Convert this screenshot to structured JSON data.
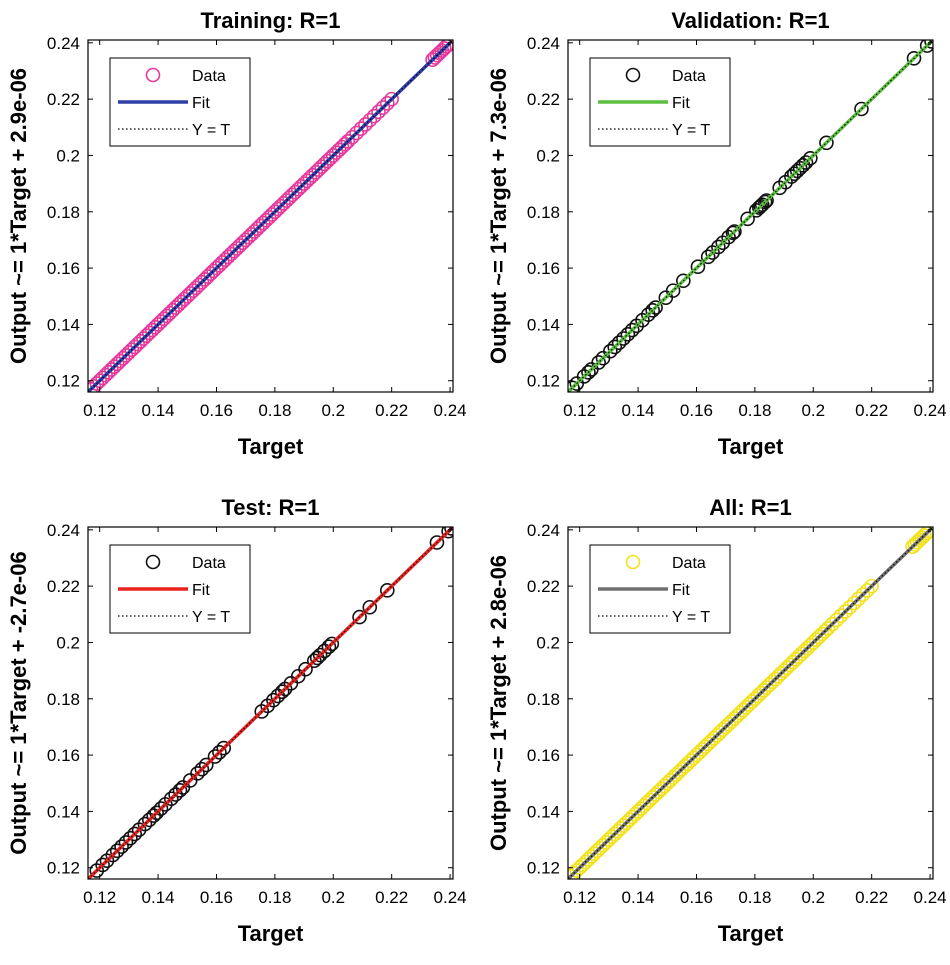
{
  "chart_data": [
    {
      "type": "scatter",
      "title": "Training: R=1",
      "xlabel": "Target",
      "ylabel": "Output ~= 1*Target + 2.9e-06",
      "xlim": [
        0.116,
        0.241
      ],
      "ylim": [
        0.116,
        0.241
      ],
      "xticks": [
        0.12,
        0.14,
        0.16,
        0.18,
        0.2,
        0.22,
        0.24
      ],
      "yticks": [
        0.12,
        0.14,
        0.16,
        0.18,
        0.2,
        0.22,
        0.24
      ],
      "xtick_labels": [
        "0.12",
        "0.14",
        "0.16",
        "0.18",
        "0.2",
        "0.22",
        "0.24"
      ],
      "ytick_labels": [
        "0.12",
        "0.14",
        "0.16",
        "0.18",
        "0.2",
        "0.22",
        "0.24"
      ],
      "legend": [
        "Data",
        "Fit",
        "Y = T"
      ],
      "marker_color": "#e8399a",
      "fit_color": "#2f3fa8",
      "density": "dense",
      "clusters": [
        [
          0.117,
          0.205,
          0.001
        ],
        [
          0.205,
          0.221,
          0.0015
        ],
        [
          0.234,
          0.24,
          0.0008
        ]
      ],
      "fit": {
        "slope": 1,
        "intercept": 2.9e-06,
        "x_range": [
          0.116,
          0.24
        ]
      }
    },
    {
      "type": "scatter",
      "title": "Validation: R=1",
      "xlabel": "Target",
      "ylabel": "Output ~= 1*Target + 7.3e-06",
      "xlim": [
        0.116,
        0.241
      ],
      "ylim": [
        0.116,
        0.241
      ],
      "xticks": [
        0.12,
        0.14,
        0.16,
        0.18,
        0.2,
        0.22,
        0.24
      ],
      "yticks": [
        0.12,
        0.14,
        0.16,
        0.18,
        0.2,
        0.22,
        0.24
      ],
      "xtick_labels": [
        "0.12",
        "0.14",
        "0.16",
        "0.18",
        "0.2",
        "0.22",
        "0.24"
      ],
      "ytick_labels": [
        "0.12",
        "0.14",
        "0.16",
        "0.18",
        "0.2",
        "0.22",
        "0.24"
      ],
      "legend": [
        "Data",
        "Fit",
        "Y = T"
      ],
      "marker_color": "#111111",
      "fit_color": "#5cbf3f",
      "density": "sparse",
      "points": [
        0.1175,
        0.119,
        0.1215,
        0.123,
        0.124,
        0.1265,
        0.128,
        0.1305,
        0.132,
        0.1335,
        0.135,
        0.1365,
        0.138,
        0.1395,
        0.1415,
        0.1435,
        0.145,
        0.146,
        0.1495,
        0.152,
        0.1555,
        0.1605,
        0.164,
        0.1655,
        0.1675,
        0.169,
        0.171,
        0.1725,
        0.173,
        0.1775,
        0.1805,
        0.1815,
        0.182,
        0.1825,
        0.1835,
        0.184,
        0.1885,
        0.1905,
        0.1925,
        0.1935,
        0.1945,
        0.1955,
        0.1965,
        0.1975,
        0.199,
        0.2045,
        0.2165,
        0.2345,
        0.239,
        0.2405
      ],
      "fit": {
        "slope": 1,
        "intercept": 7.3e-06,
        "x_range": [
          0.116,
          0.241
        ]
      }
    },
    {
      "type": "scatter",
      "title": "Test: R=1",
      "xlabel": "Target",
      "ylabel": "Output ~= 1*Target + -2.7e-06",
      "xlim": [
        0.116,
        0.241
      ],
      "ylim": [
        0.116,
        0.241
      ],
      "xticks": [
        0.12,
        0.14,
        0.16,
        0.18,
        0.2,
        0.22,
        0.24
      ],
      "yticks": [
        0.12,
        0.14,
        0.16,
        0.18,
        0.2,
        0.22,
        0.24
      ],
      "xtick_labels": [
        "0.12",
        "0.14",
        "0.16",
        "0.18",
        "0.2",
        "0.22",
        "0.24"
      ],
      "ytick_labels": [
        "0.12",
        "0.14",
        "0.16",
        "0.18",
        "0.2",
        "0.22",
        "0.24"
      ],
      "legend": [
        "Data",
        "Fit",
        "Y = T"
      ],
      "marker_color": "#111111",
      "fit_color": "#e8221e",
      "density": "sparse",
      "points": [
        0.119,
        0.121,
        0.1225,
        0.1245,
        0.126,
        0.1275,
        0.129,
        0.1305,
        0.132,
        0.1335,
        0.1355,
        0.137,
        0.1385,
        0.1395,
        0.141,
        0.1425,
        0.1445,
        0.146,
        0.1475,
        0.1485,
        0.151,
        0.1535,
        0.155,
        0.1565,
        0.1595,
        0.161,
        0.1625,
        0.1755,
        0.1775,
        0.1795,
        0.181,
        0.1825,
        0.1835,
        0.1855,
        0.188,
        0.1905,
        0.1935,
        0.1945,
        0.1955,
        0.197,
        0.1985,
        0.1995,
        0.209,
        0.2125,
        0.2185,
        0.2355,
        0.2395,
        0.2405
      ],
      "fit": {
        "slope": 1,
        "intercept": -2.7e-06,
        "x_range": [
          0.116,
          0.241
        ]
      }
    },
    {
      "type": "scatter",
      "title": "All: R=1",
      "xlabel": "Target",
      "ylabel": "Output ~= 1*Target + 2.8e-06",
      "xlim": [
        0.116,
        0.241
      ],
      "ylim": [
        0.116,
        0.241
      ],
      "xticks": [
        0.12,
        0.14,
        0.16,
        0.18,
        0.2,
        0.22,
        0.24
      ],
      "yticks": [
        0.12,
        0.14,
        0.16,
        0.18,
        0.2,
        0.22,
        0.24
      ],
      "xtick_labels": [
        "0.12",
        "0.14",
        "0.16",
        "0.18",
        "0.2",
        "0.22",
        "0.24"
      ],
      "ytick_labels": [
        "0.12",
        "0.14",
        "0.16",
        "0.18",
        "0.2",
        "0.22",
        "0.24"
      ],
      "legend": [
        "Data",
        "Fit",
        "Y = T"
      ],
      "marker_color": "#f2e21c",
      "fit_color": "#707070",
      "density": "dense",
      "clusters": [
        [
          0.117,
          0.205,
          0.001
        ],
        [
          0.205,
          0.221,
          0.0015
        ],
        [
          0.234,
          0.24,
          0.0008
        ]
      ],
      "fit": {
        "slope": 1,
        "intercept": 2.8e-06,
        "x_range": [
          0.116,
          0.24
        ]
      }
    }
  ]
}
